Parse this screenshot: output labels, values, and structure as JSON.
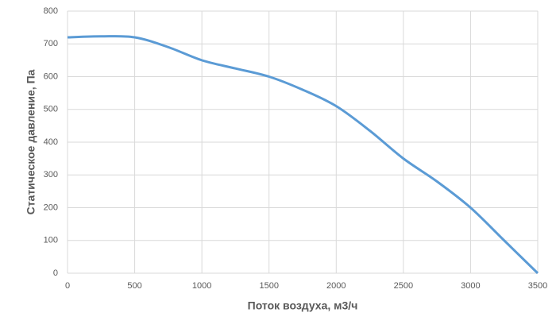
{
  "chart_data": {
    "type": "line",
    "x_label": "Поток воздуха, м3/ч",
    "y_label": "Статическое давление, Па",
    "x": [
      0,
      250,
      500,
      750,
      1000,
      1250,
      1500,
      1750,
      2000,
      2250,
      2500,
      2750,
      3000,
      3250,
      3500
    ],
    "series": [
      {
        "color": "#5b9bd5",
        "values": [
          720,
          723,
          720,
          690,
          650,
          625,
          600,
          560,
          510,
          435,
          350,
          280,
          200,
          100,
          0
        ]
      }
    ],
    "xlim": [
      0,
      3500
    ],
    "xticks": [
      0,
      500,
      1000,
      1500,
      2000,
      2500,
      3000,
      3500
    ],
    "ylim": [
      0,
      800
    ],
    "yticks": [
      0,
      100,
      200,
      300,
      400,
      500,
      600,
      700,
      800
    ],
    "grid": true
  }
}
